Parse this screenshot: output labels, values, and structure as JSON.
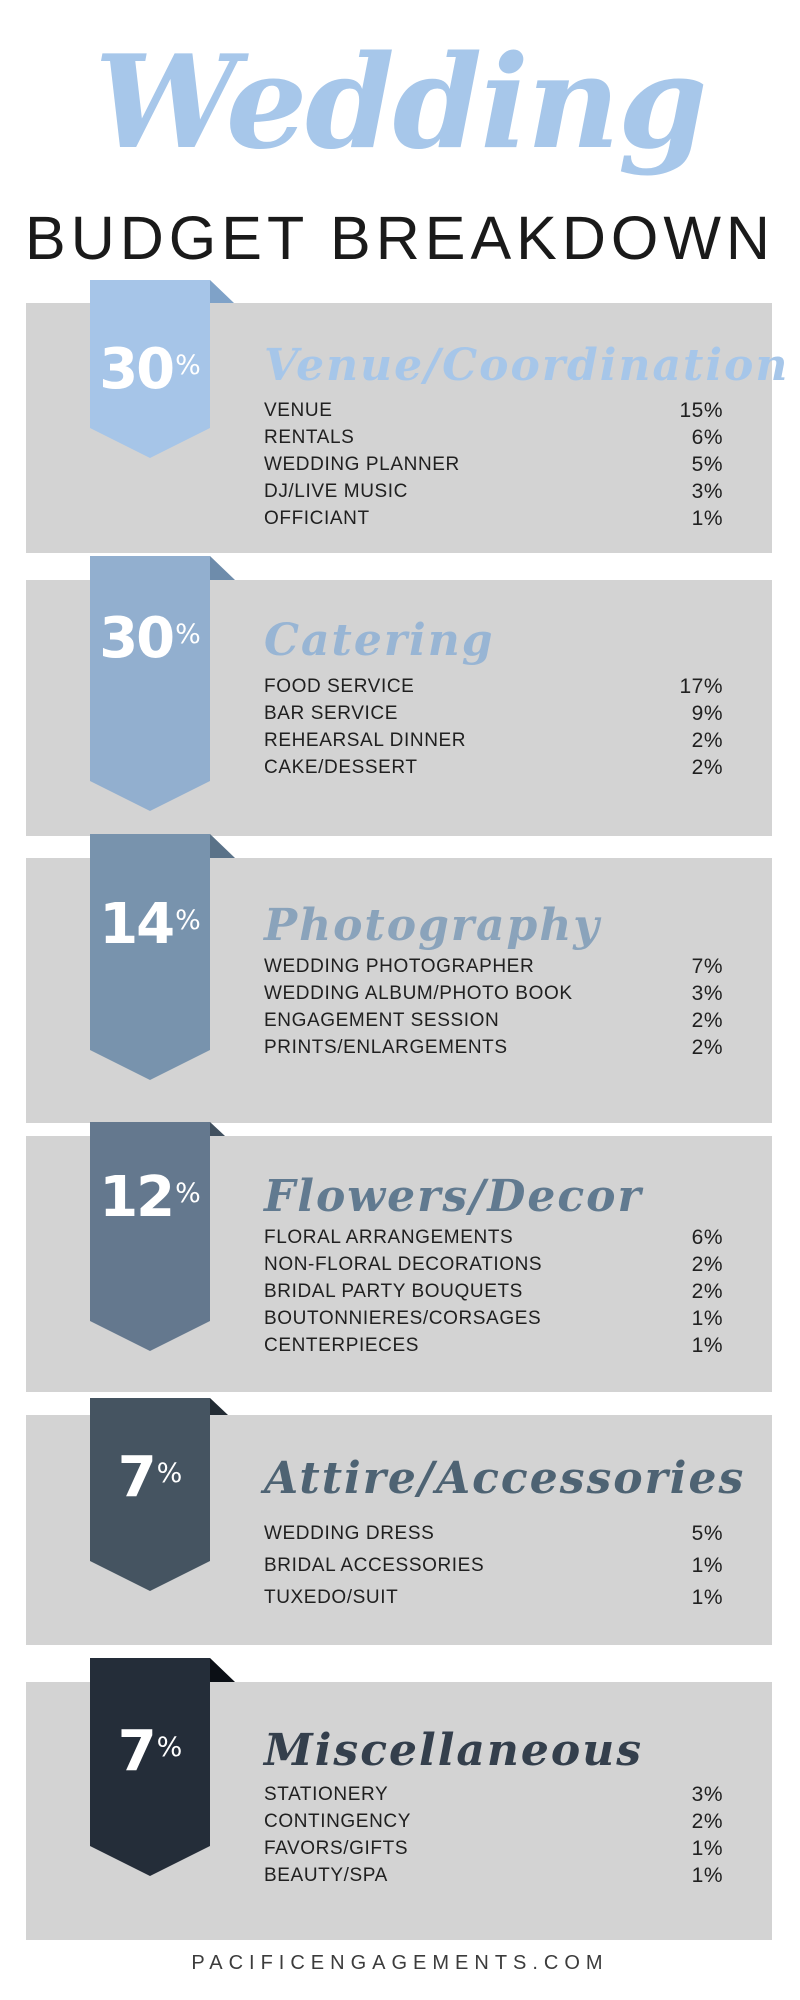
{
  "header": {
    "script_title": "Wedding",
    "main_title": "BUDGET BREAKDOWN",
    "script_color": "#a7c7ea",
    "main_title_color": "#1a1a1a"
  },
  "percent_sign": "%",
  "theme": {
    "page_bg": "#ffffff",
    "panel_bg": "#d3d3d3",
    "item_text": "#202020",
    "footer_text": "#3c3c3c"
  },
  "sections": [
    {
      "percent": "30",
      "title": "Venue/Coordination",
      "colors": {
        "ribbon": "#a6c5e8",
        "fold": "#7fa2c8",
        "title": "#a6c6e9"
      },
      "items": [
        {
          "label": "VENUE",
          "value": "15%"
        },
        {
          "label": "RENTALS",
          "value": "6%"
        },
        {
          "label": "WEDDING PLANNER",
          "value": "5%"
        },
        {
          "label": "DJ/LIVE MUSIC",
          "value": "3%"
        },
        {
          "label": "OFFICIANT",
          "value": "1%"
        }
      ]
    },
    {
      "percent": "30",
      "title": "Catering",
      "colors": {
        "ribbon": "#92afcf",
        "fold": "#6e8cab",
        "title": "#98b5d4"
      },
      "items": [
        {
          "label": "FOOD SERVICE",
          "value": "17%"
        },
        {
          "label": "BAR SERVICE",
          "value": "9%"
        },
        {
          "label": "REHEARSAL DINNER",
          "value": "2%"
        },
        {
          "label": "CAKE/DESSERT",
          "value": "2%"
        }
      ]
    },
    {
      "percent": "14",
      "title": "Photography",
      "colors": {
        "ribbon": "#7893ad",
        "fold": "#5a7288",
        "title": "#8aa3bb"
      },
      "items": [
        {
          "label": "WEDDING PHOTOGRAPHER",
          "value": "7%"
        },
        {
          "label": "WEDDING ALBUM/PHOTO BOOK",
          "value": "3%"
        },
        {
          "label": "ENGAGEMENT SESSION",
          "value": "2%"
        },
        {
          "label": "PRINTS/ENLARGEMENTS",
          "value": "2%"
        }
      ]
    },
    {
      "percent": "12",
      "title": "Flowers/Decor",
      "colors": {
        "ribbon": "#64788e",
        "fold": "#41505f",
        "title": "#617a90"
      },
      "items": [
        {
          "label": "FLORAL ARRANGEMENTS",
          "value": "6%"
        },
        {
          "label": "NON-FLORAL DECORATIONS",
          "value": "2%"
        },
        {
          "label": "BRIDAL PARTY BOUQUETS",
          "value": "2%"
        },
        {
          "label": "BOUTONNIERES/CORSAGES",
          "value": "1%"
        },
        {
          "label": "CENTERPIECES",
          "value": "1%"
        }
      ]
    },
    {
      "percent": "7",
      "title": "Attire/Accessories",
      "colors": {
        "ribbon": "#455461",
        "fold": "#232c34",
        "title": "#4e6373"
      },
      "items": [
        {
          "label": "WEDDING DRESS",
          "value": "5%"
        },
        {
          "label": "BRIDAL ACCESSORIES",
          "value": "1%"
        },
        {
          "label": "TUXEDO/SUIT",
          "value": "1%"
        }
      ]
    },
    {
      "percent": "7",
      "title": "Miscellaneous",
      "colors": {
        "ribbon": "#242d39",
        "fold": "#0b0f15",
        "title": "#343f4c"
      },
      "items": [
        {
          "label": "STATIONERY",
          "value": "3%"
        },
        {
          "label": "CONTINGENCY",
          "value": "2%"
        },
        {
          "label": "FAVORS/GIFTS",
          "value": "1%"
        },
        {
          "label": "BEAUTY/SPA",
          "value": "1%"
        }
      ]
    }
  ],
  "footer": {
    "website": "PACIFICENGAGEMENTS.COM"
  }
}
